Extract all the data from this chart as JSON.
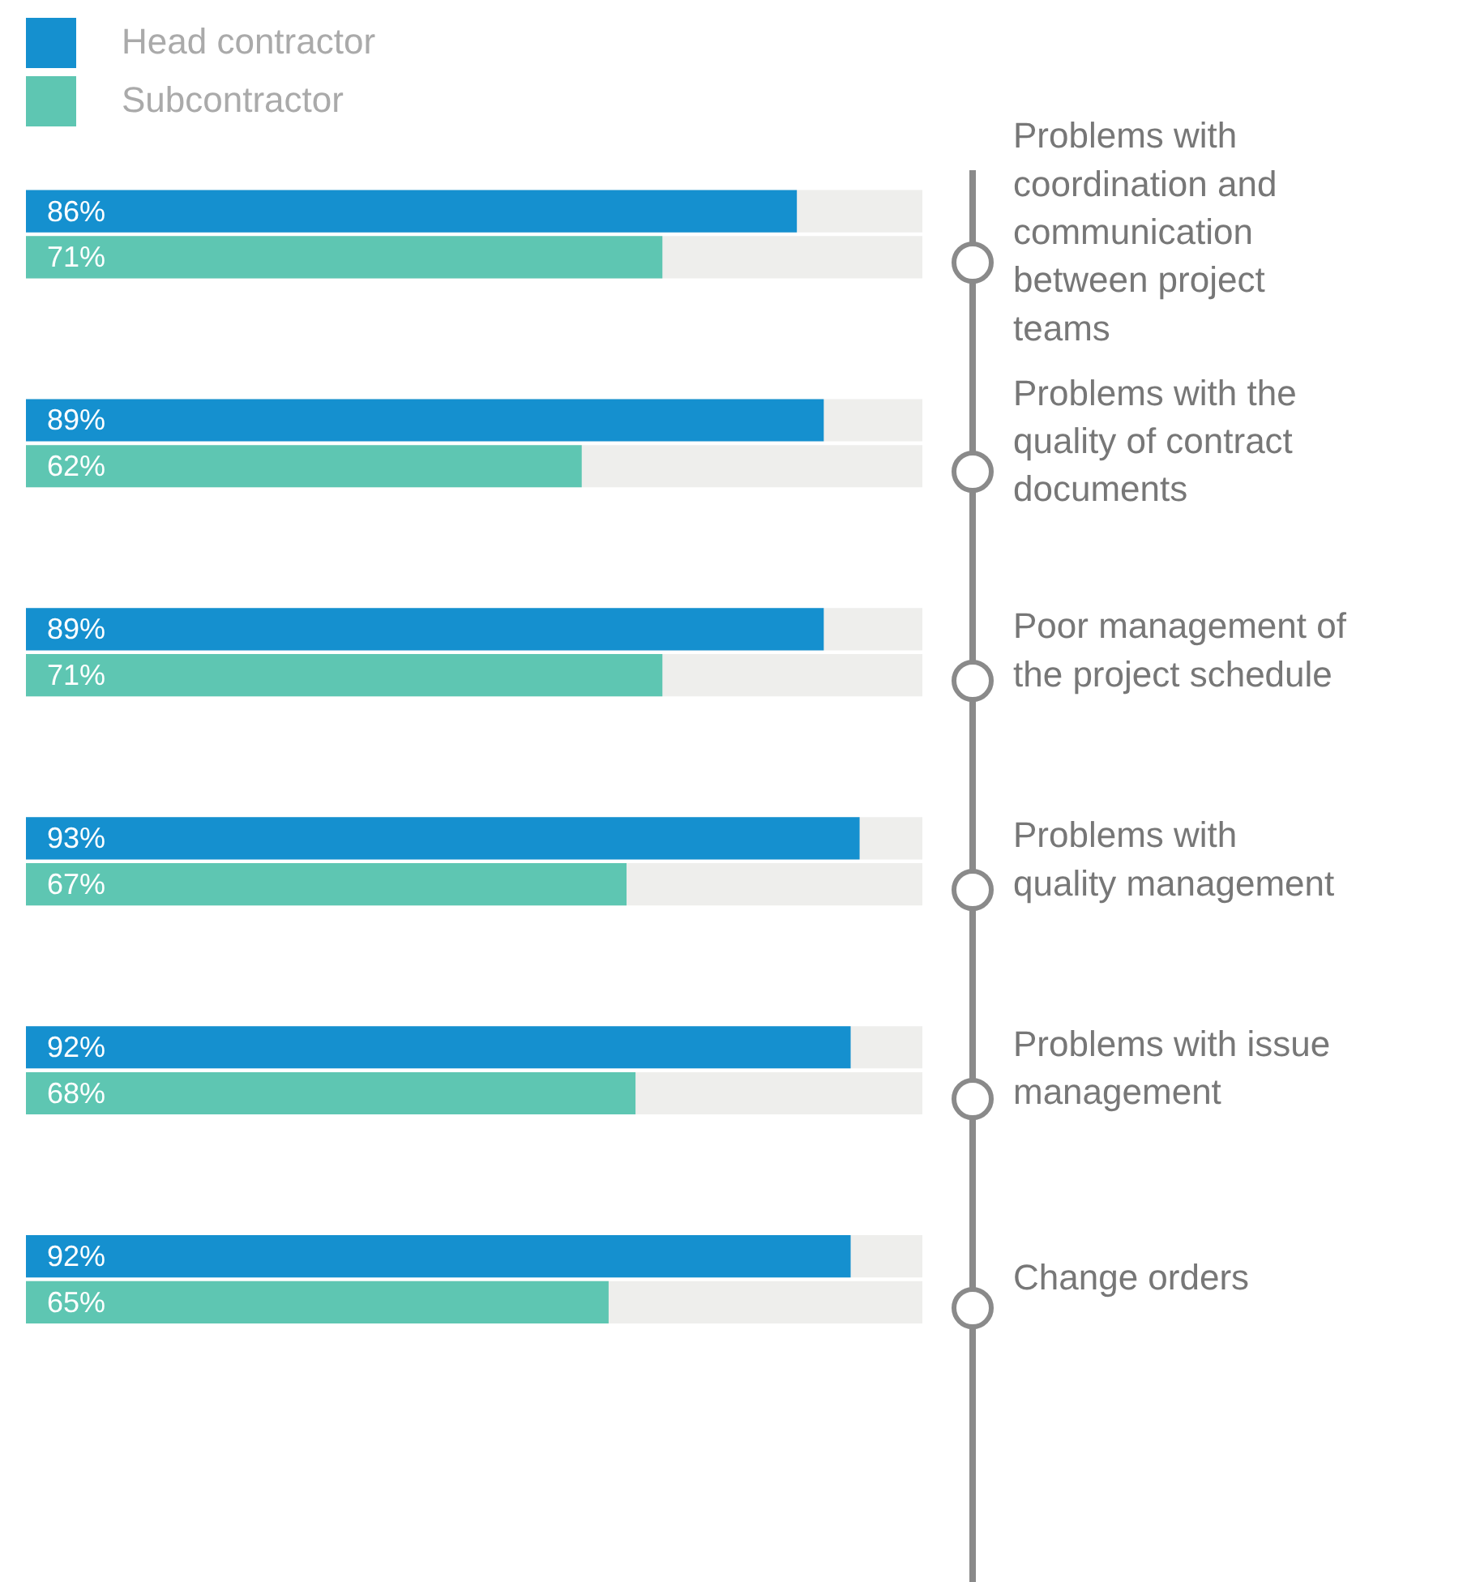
{
  "chart_data": {
    "type": "bar",
    "orientation": "horizontal",
    "categories": [
      "Problems with coordination and communication between project teams",
      "Problems with the quality of contract documents",
      "Poor management of the project schedule",
      "Problems with quality management",
      "Problems with issue management",
      "Change orders"
    ],
    "series": [
      {
        "name": "Head contractor",
        "color": "#1590cf",
        "values": [
          86,
          89,
          89,
          93,
          92,
          92
        ],
        "value_labels": [
          "86%",
          "89%",
          "89%",
          "93%",
          "92%",
          "92%"
        ]
      },
      {
        "name": "Subcontractor",
        "color": "#5ec6b2",
        "values": [
          71,
          62,
          71,
          67,
          68,
          65
        ],
        "value_labels": [
          "71%",
          "62%",
          "71%",
          "67%",
          "68%",
          "65%"
        ]
      }
    ],
    "xlim": [
      0,
      100
    ],
    "legend": "top left",
    "tick_labels": "y"
  }
}
